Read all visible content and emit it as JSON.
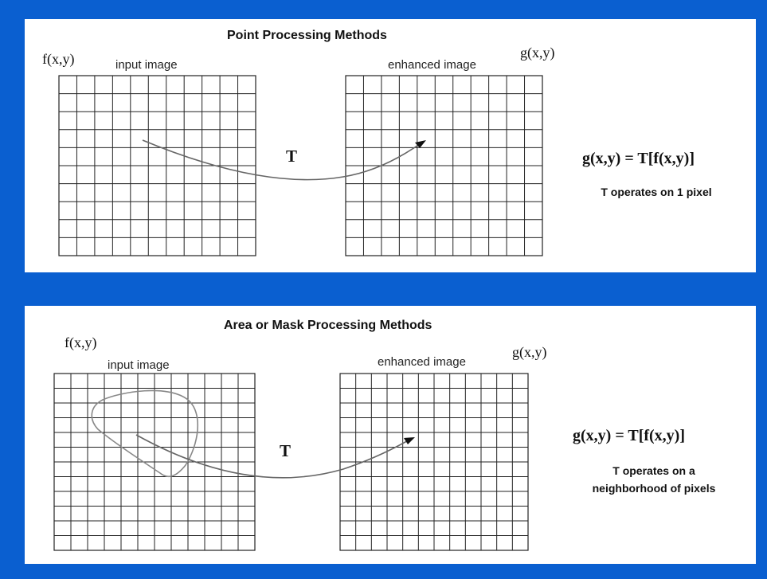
{
  "point": {
    "title": "Point Processing Methods",
    "input_fn": "f(x,y)",
    "output_fn": "g(x,y)",
    "input_caption": "input image",
    "output_caption": "enhanced image",
    "transform": "T",
    "formula": "g(x,y) = T[f(x,y)]",
    "note_lines": [
      "T operates on 1 pixel"
    ],
    "grid": {
      "cols": 11,
      "rows": 10
    }
  },
  "area": {
    "title": "Area or Mask Processing Methods",
    "input_fn": "f(x,y)",
    "output_fn": "g(x,y)",
    "input_caption": "input image",
    "output_caption": "enhanced image",
    "transform": "T",
    "formula": "g(x,y) = T[f(x,y)]",
    "note_lines": [
      "T operates on a",
      "neighborhood of pixels"
    ],
    "grid": {
      "cols": 12,
      "rows": 12
    }
  },
  "colors": {
    "background": "#0a5fd0",
    "panel": "#ffffff",
    "ink": "#111111",
    "grid_line": "#222222"
  }
}
